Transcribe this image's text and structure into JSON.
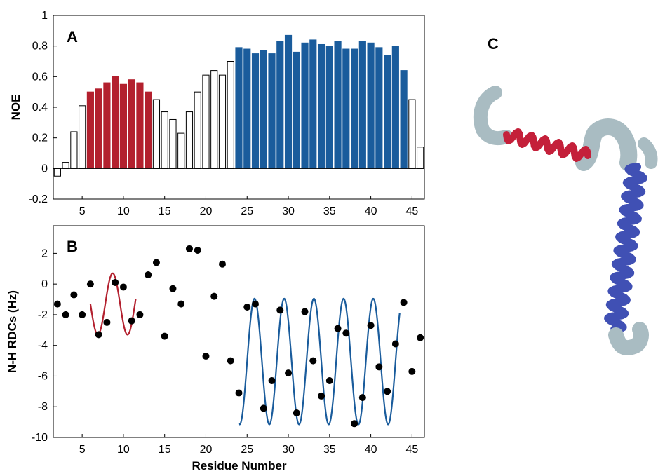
{
  "panels": {
    "a": {
      "letter": "A"
    },
    "b": {
      "letter": "B"
    },
    "c": {
      "letter": "C"
    }
  },
  "colors": {
    "red": "#b3202e",
    "blue": "#1a5c9c",
    "open": "#ffffff",
    "helix_gray": "#a9bcc2",
    "helix_red": "#c4203a",
    "helix_blue": "#4050b4",
    "point": "#000000"
  },
  "chart_data": [
    {
      "type": "bar",
      "panel": "A",
      "ylabel": "NOE",
      "xlabel": "",
      "xlim": [
        1.5,
        46.5
      ],
      "ylim": [
        -0.2,
        1.0
      ],
      "xticks": [
        "5",
        "10",
        "15",
        "20",
        "25",
        "30",
        "35",
        "40",
        "45"
      ],
      "yticks": [
        "-0.2",
        "0",
        "0.2",
        "0.4",
        "0.6",
        "0.8",
        "1"
      ],
      "residues": [
        2,
        3,
        4,
        5,
        6,
        7,
        8,
        9,
        10,
        11,
        12,
        13,
        14,
        15,
        16,
        17,
        18,
        19,
        20,
        21,
        22,
        23,
        24,
        25,
        26,
        27,
        28,
        29,
        30,
        31,
        32,
        33,
        34,
        35,
        36,
        37,
        38,
        39,
        40,
        41,
        42,
        43,
        44,
        45,
        46
      ],
      "values": [
        -0.05,
        0.04,
        0.24,
        0.41,
        0.5,
        0.52,
        0.56,
        0.6,
        0.55,
        0.58,
        0.56,
        0.5,
        0.45,
        0.37,
        0.32,
        0.23,
        0.37,
        0.5,
        0.61,
        0.64,
        0.61,
        0.7,
        0.79,
        0.78,
        0.75,
        0.77,
        0.75,
        0.83,
        0.87,
        0.76,
        0.82,
        0.84,
        0.81,
        0.8,
        0.83,
        0.78,
        0.78,
        0.83,
        0.82,
        0.79,
        0.74,
        0.8,
        0.64,
        0.45,
        0.14
      ],
      "groups": [
        "open",
        "open",
        "open",
        "open",
        "red",
        "red",
        "red",
        "red",
        "red",
        "red",
        "red",
        "red",
        "open",
        "open",
        "open",
        "open",
        "open",
        "open",
        "open",
        "open",
        "open",
        "open",
        "blue",
        "blue",
        "blue",
        "blue",
        "blue",
        "blue",
        "blue",
        "blue",
        "blue",
        "blue",
        "blue",
        "blue",
        "blue",
        "blue",
        "blue",
        "blue",
        "blue",
        "blue",
        "blue",
        "blue",
        "blue",
        "open",
        "open"
      ]
    },
    {
      "type": "scatter",
      "panel": "B",
      "ylabel": "N-H RDCs (Hz)",
      "xlabel": "Residue Number",
      "xlim": [
        1.5,
        46.5
      ],
      "ylim": [
        -10,
        3.8
      ],
      "xticks": [
        "5",
        "10",
        "15",
        "20",
        "25",
        "30",
        "35",
        "40",
        "45"
      ],
      "yticks": [
        "-10",
        "-8",
        "-6",
        "-4",
        "-2",
        "0",
        "2"
      ],
      "points": {
        "x": [
          2,
          3,
          4,
          5,
          6,
          7,
          8,
          9,
          10,
          11,
          12,
          13,
          14,
          15,
          16,
          17,
          18,
          19,
          20,
          21,
          22,
          23,
          24,
          25,
          26,
          27,
          28,
          29,
          30,
          31,
          32,
          33,
          34,
          35,
          36,
          37,
          38,
          39,
          40,
          41,
          42,
          43,
          44,
          45,
          46
        ],
        "y": [
          -1.3,
          -2.0,
          -0.7,
          -2.0,
          0.0,
          -3.3,
          -2.5,
          0.1,
          -0.2,
          -2.4,
          -2.0,
          0.6,
          1.4,
          -3.4,
          -0.3,
          -1.3,
          2.3,
          2.2,
          -4.7,
          -0.8,
          1.3,
          -5.0,
          -7.1,
          -1.5,
          -1.3,
          -8.1,
          -6.3,
          -1.7,
          -5.8,
          -8.4,
          -1.8,
          -5.0,
          -7.3,
          -6.3,
          -2.9,
          -3.2,
          -9.1,
          -7.4,
          -2.7,
          -5.4,
          -7.0,
          -3.9,
          -1.2,
          -5.7,
          -3.5
        ]
      },
      "fits": [
        {
          "x_range": [
            6,
            11.5
          ],
          "amplitude": 2.0,
          "offset": -1.3,
          "period": 3.6,
          "phase_x": 8.7,
          "color": "red"
        },
        {
          "x_range": [
            24,
            43.5
          ],
          "amplitude": 4.1,
          "offset": -5.05,
          "period": 3.6,
          "phase_x": 25.9,
          "color": "blue"
        }
      ]
    }
  ]
}
